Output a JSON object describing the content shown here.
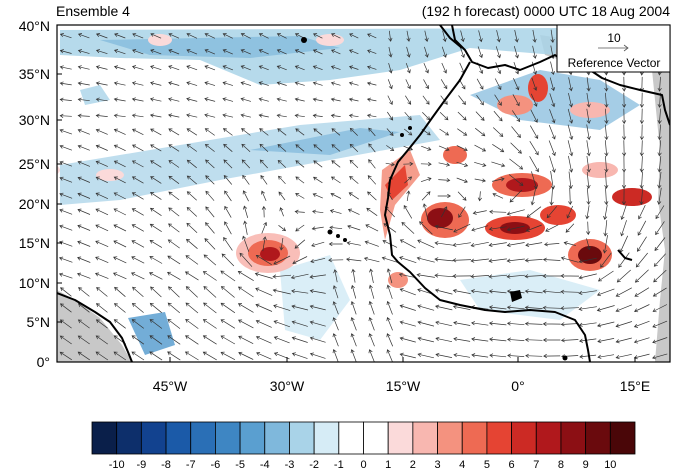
{
  "header": {
    "left_title": "Ensemble 4",
    "right_title": "(192 h forecast) 0000 UTC 18 Aug 2004"
  },
  "map": {
    "lat_ticks": [
      "0°",
      "5°N",
      "10°N",
      "15°N",
      "20°N",
      "25°N",
      "30°N",
      "35°N",
      "40°N"
    ],
    "lon_ticks": [
      "45°W",
      "30°W",
      "15°W",
      "0°",
      "15°E"
    ],
    "land_missing_color": "#c8c8c8",
    "coastline_color": "#000000"
  },
  "reference_vector": {
    "magnitude": "10",
    "label": "Reference Vector"
  },
  "colorbar": {
    "labels": [
      "-10",
      "-9",
      "-8",
      "-7",
      "-6",
      "-5",
      "-4",
      "-3",
      "-2",
      "-1",
      "0",
      "1",
      "2",
      "3",
      "4",
      "5",
      "6",
      "7",
      "8",
      "9",
      "10"
    ],
    "colors": [
      "#0a1f4a",
      "#0d2f6b",
      "#12428f",
      "#1b5aa8",
      "#2a6fb6",
      "#3e86c3",
      "#5a9fd0",
      "#7fb8dc",
      "#a9d3e8",
      "#d6ecf6",
      "#ffffff",
      "#ffffff",
      "#fbdada",
      "#f8b7b0",
      "#f4927f",
      "#ee6a53",
      "#e54433",
      "#cc2a24",
      "#b0181c",
      "#8c0f14",
      "#6a0a0d",
      "#4a0608"
    ]
  }
}
